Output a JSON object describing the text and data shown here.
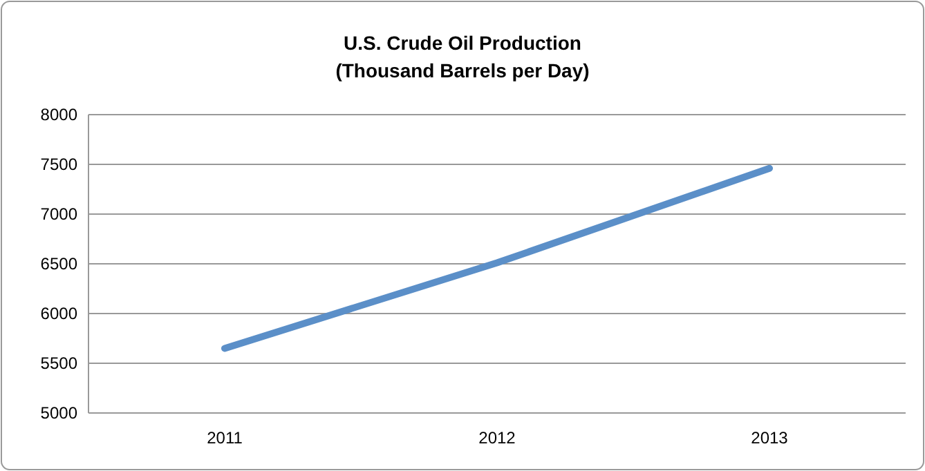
{
  "chart_data": {
    "type": "line",
    "title": "U.S. Crude Oil Production\n(Thousand Barrels per Day)",
    "categories": [
      "2011",
      "2012",
      "2013"
    ],
    "series": [
      {
        "color": "#5b8fc8",
        "values": [
          5650,
          6510,
          7460
        ]
      }
    ],
    "ylim": [
      5000,
      8000
    ],
    "yticks": [
      5000,
      5500,
      6000,
      6500,
      7000,
      7500,
      8000
    ],
    "grid": "y",
    "marker": "none",
    "line_style": "solid"
  }
}
